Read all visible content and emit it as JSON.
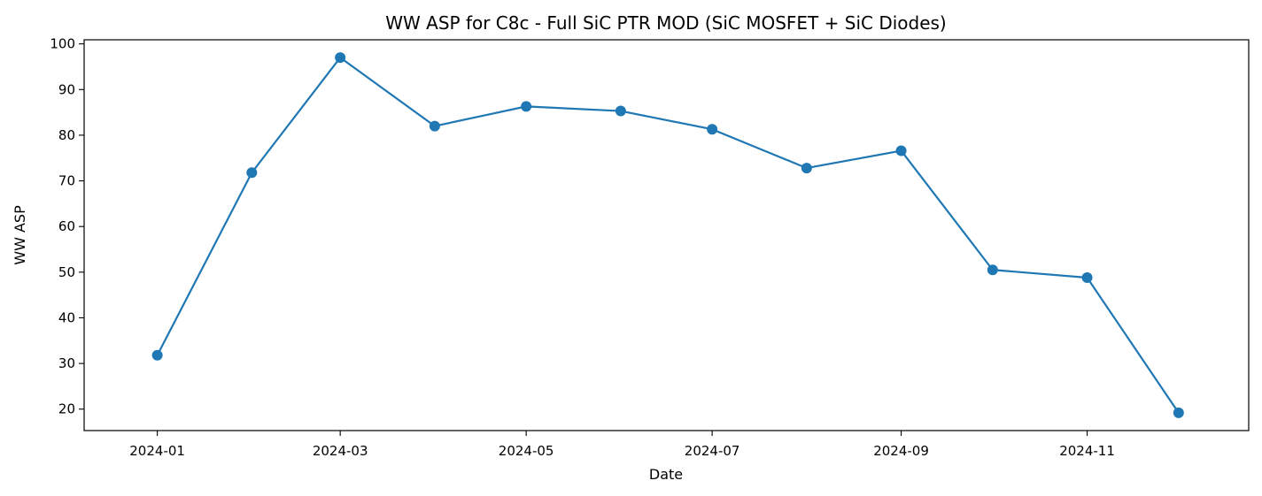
{
  "chart_data": {
    "type": "line",
    "title": "WW ASP for C8c - Full SiC PTR MOD (SiC MOSFET + SiC Diodes)",
    "xlabel": "Date",
    "ylabel": "WW ASP",
    "x": [
      "2024-01-01",
      "2024-02-01",
      "2024-03-01",
      "2024-04-01",
      "2024-05-01",
      "2024-06-01",
      "2024-07-01",
      "2024-08-01",
      "2024-09-01",
      "2024-10-01",
      "2024-11-01",
      "2024-12-01"
    ],
    "series": [
      {
        "values": [
          31.8,
          71.8,
          97.0,
          82.0,
          86.3,
          85.3,
          81.3,
          72.8,
          76.6,
          50.5,
          48.8,
          19.2
        ]
      }
    ],
    "xticks": [
      "2024-01",
      "2024-03",
      "2024-05",
      "2024-07",
      "2024-09",
      "2024-11"
    ],
    "yticks": [
      20,
      30,
      40,
      50,
      60,
      70,
      80,
      90,
      100
    ],
    "xlim": [
      "2023-12-08",
      "2024-12-24"
    ],
    "ylim": [
      15.3,
      100.9
    ],
    "grid": false,
    "line_color": "#1f77b4",
    "marker": "circle"
  }
}
